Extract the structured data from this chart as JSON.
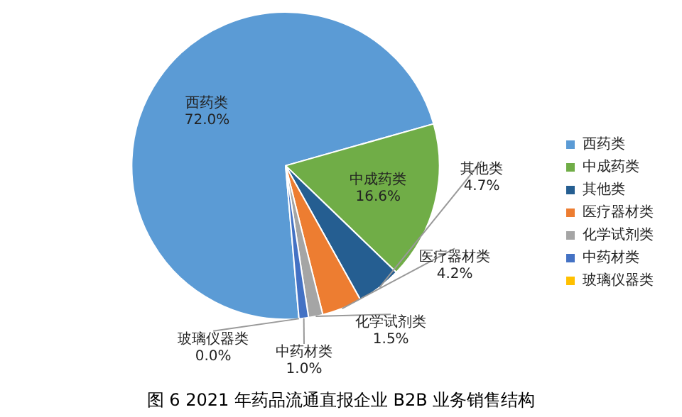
{
  "chart_data": {
    "type": "pie",
    "title": "图 6 2021 年药品流通直报企业 B2B 业务销售结构",
    "categories": [
      "西药类",
      "中成药类",
      "其他类",
      "医疗器材类",
      "化学试剂类",
      "中药材类",
      "玻璃仪器类"
    ],
    "values": [
      72.0,
      16.6,
      4.7,
      4.2,
      1.5,
      1.0,
      0.0
    ],
    "colors": [
      "#5b9bd5",
      "#70ad47",
      "#255e91",
      "#ed7d31",
      "#a5a5a5",
      "#4472c4",
      "#ffc000"
    ],
    "value_labels": [
      "72.0%",
      "16.6%",
      "4.7%",
      "4.2%",
      "1.5%",
      "1.0%",
      "0.0%"
    ],
    "legend": "right"
  }
}
